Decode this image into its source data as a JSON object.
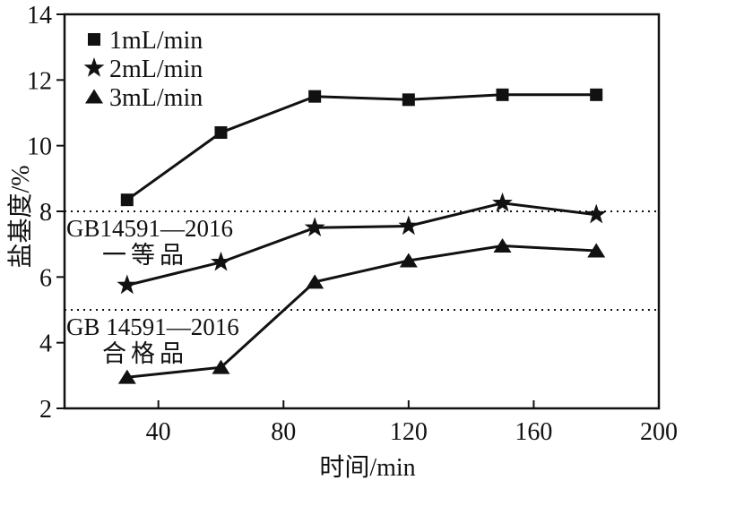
{
  "chart_data": {
    "type": "line",
    "title": "",
    "xlabel": "时间/min",
    "ylabel": "盐基度/%",
    "x": [
      30,
      60,
      90,
      120,
      150,
      180
    ],
    "series": [
      {
        "name": "1mL/min",
        "marker": "square",
        "values": [
          8.35,
          10.4,
          11.5,
          11.4,
          11.55,
          11.55
        ]
      },
      {
        "name": "2mL/min",
        "marker": "star",
        "values": [
          5.75,
          6.45,
          7.5,
          7.55,
          8.25,
          7.9
        ]
      },
      {
        "name": "3mL/min",
        "marker": "triangle",
        "values": [
          2.95,
          3.25,
          5.85,
          6.5,
          6.95,
          6.8
        ]
      }
    ],
    "xlim": [
      10,
      200
    ],
    "ylim": [
      2,
      14
    ],
    "xticks": [
      40,
      80,
      120,
      160,
      200
    ],
    "yticks": [
      2,
      4,
      6,
      8,
      10,
      12,
      14
    ],
    "grid": false,
    "legend_position": "top-left",
    "reference_lines": [
      {
        "y": 8,
        "style": "dotted",
        "label_line1": "GB14591—2016",
        "label_line2": "一等品"
      },
      {
        "y": 5,
        "style": "dotted",
        "label_line1": "GB 14591—2016",
        "label_line2": "合格品"
      }
    ],
    "line_color": "#111111",
    "background": "#ffffff"
  }
}
